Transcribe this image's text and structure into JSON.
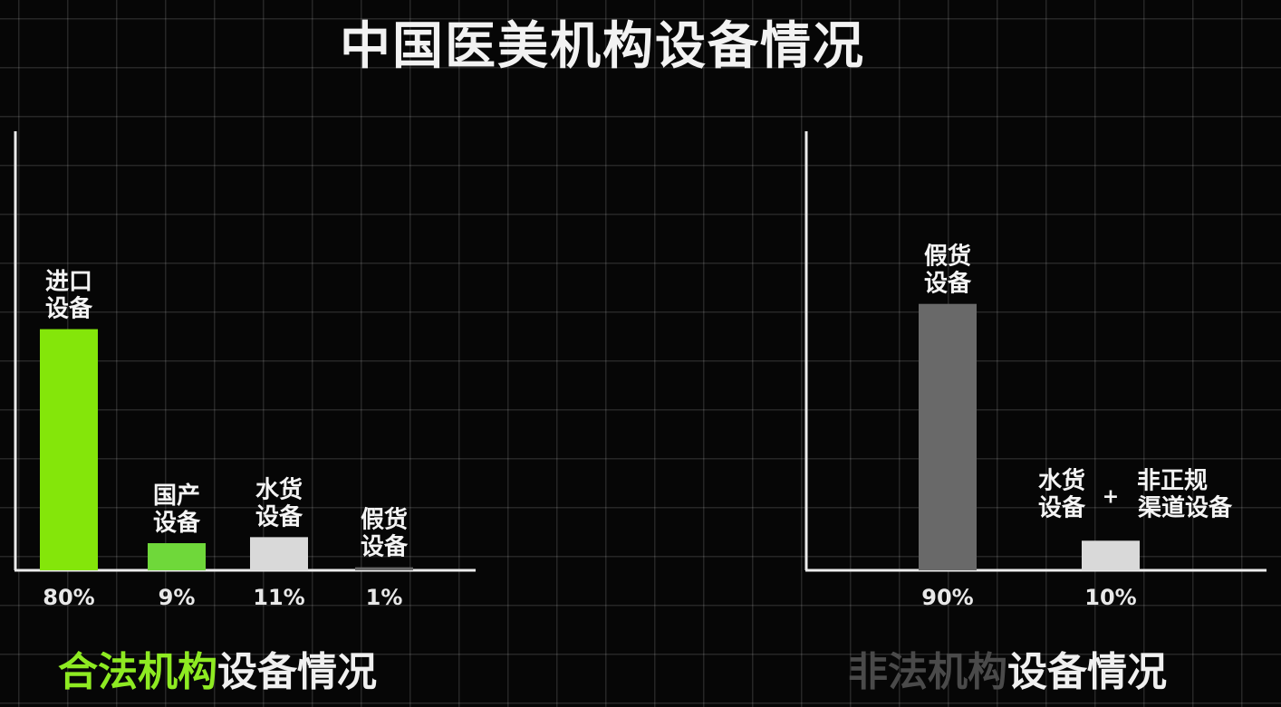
{
  "title": "中国医美机构设备情况",
  "charts": {
    "legal": {
      "title_highlight": "合法机构",
      "title_rest": "设备情况",
      "highlight_color": "#8eea22"
    },
    "illegal": {
      "title_highlight": "非法机构",
      "title_rest": "设备情况",
      "highlight_color": "#4a4a4a",
      "plus_sign": "+"
    }
  },
  "chart_data": [
    {
      "type": "bar",
      "title": "合法机构设备情况",
      "categories": [
        [
          "进口",
          "设备"
        ],
        [
          "国产",
          "设备"
        ],
        [
          "水货",
          "设备"
        ],
        [
          "假货",
          "设备"
        ]
      ],
      "values": [
        80,
        9,
        11,
        1
      ],
      "value_labels": [
        "80%",
        "9%",
        "11%",
        "1%"
      ],
      "colors": [
        "#84e60a",
        "#6fd83a",
        "#d9d9d9",
        "#6a6a6a"
      ],
      "ylim": [
        0,
        100
      ],
      "grid": true
    },
    {
      "type": "bar",
      "title": "非法机构设备情况",
      "categories": [
        [
          "假货",
          "设备"
        ],
        [
          "水货",
          "设备",
          "非正规",
          "渠道设备"
        ]
      ],
      "values": [
        90,
        10
      ],
      "value_labels": [
        "90%",
        "10%"
      ],
      "colors": [
        "#696969",
        "#d9d9d9"
      ],
      "ylim": [
        0,
        100
      ],
      "grid": true
    }
  ]
}
